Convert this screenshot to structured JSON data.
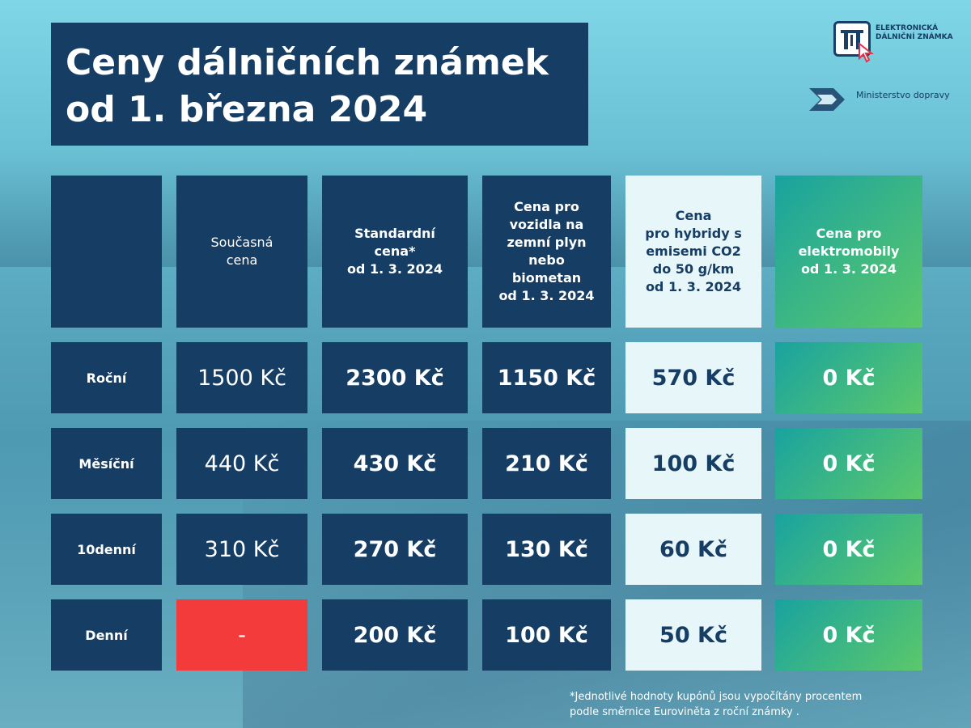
{
  "title": {
    "line1": "Ceny dálničních známek",
    "line2": "od 1. března 2024"
  },
  "logos": {
    "edz_line1": "ELEKTRONICKÁ",
    "edz_line2": "DÁLNIČNÍ ZNÁMKA",
    "ministry": "Ministerstvo dopravy"
  },
  "table": {
    "headers": [
      "",
      "Současná\ncena",
      "Standardní\ncena*\nod 1. 3. 2024",
      "Cena pro\nvozidla na\nzemní plyn\nnebo\nbiometan\nod 1. 3. 2024",
      "Cena\npro hybridy s\nemisemi CO2\ndo 50 g/km\nod 1. 3. 2024",
      "Cena pro\nelektromobily\nod 1. 3. 2024"
    ],
    "rows": [
      {
        "label": "Roční",
        "values": [
          "1500 Kč",
          "2300 Kč",
          "1150 Kč",
          "570 Kč",
          "0 Kč"
        ]
      },
      {
        "label": "Měsíční",
        "values": [
          "440 Kč",
          "430 Kč",
          "210 Kč",
          "100 Kč",
          "0 Kč"
        ]
      },
      {
        "label": "10denní",
        "values": [
          "310 Kč",
          "270 Kč",
          "130 Kč",
          "60 Kč",
          "0 Kč"
        ]
      },
      {
        "label": "Denní",
        "values": [
          "-",
          "200 Kč",
          "100 Kč",
          "50 Kč",
          "0 Kč"
        ]
      }
    ]
  },
  "footnote": {
    "line1": "*Jednotlivé hodnoty kupónů jsou vypočítány procentem",
    "line2": "podle směrnice Euroviněta z roční známky ."
  },
  "colors": {
    "dark_blue": "#163d63",
    "light_cell": "#e6f6f9",
    "green_gradient_start": "#19a3a0",
    "green_gradient_end": "#5cc86a",
    "unavailable_red": "#f33b3b"
  }
}
